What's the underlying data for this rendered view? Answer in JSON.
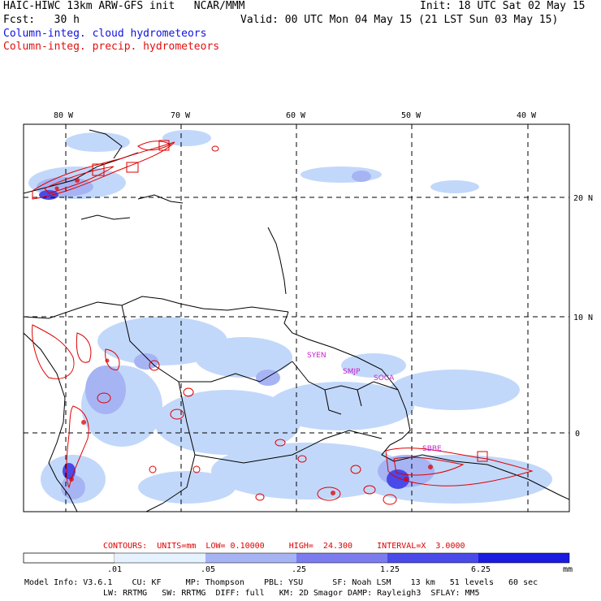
{
  "header": {
    "model_line": "HAIC-HIWC 13km ARW-GFS init   NCAR/MMM",
    "init_line": "Init: 18 UTC Sat 02 May 15",
    "fcst_line": "Fcst:   30 h",
    "valid_line": "Valid: 00 UTC Mon 04 May 15 (21 LST Sun 03 May 15)",
    "legend_cloud": "Column-integ. cloud hydrometeors",
    "legend_precip": "Column-integ. precip. hydrometeors"
  },
  "colors": {
    "cloud_text": "#1010e0",
    "precip_text": "#e01010",
    "precip_contour": "#e00000",
    "label_magenta": "#cc22cc",
    "shade_1": "#e6f2ff",
    "shade_2": "#c2d8fa",
    "shade_3": "#a6b4f4",
    "shade_4": "#7d7cef",
    "shade_5": "#4a4ae8",
    "shade_6": "#1a1ae0",
    "coast": "#000000",
    "grid": "#000000"
  },
  "map": {
    "lon_labels": [
      "80 W",
      "70 W",
      "60 W",
      "50 W",
      "40 W"
    ],
    "lat_labels": [
      "20 N",
      "10 N",
      "0"
    ],
    "place_labels": [
      "SYEN",
      "SMJP",
      "SOCA",
      "SBBE"
    ]
  },
  "contour_info": {
    "label": "CONTOURS:  UNITS=mm  LOW= 0.10000     HIGH=  24.300     INTERVAL=X  3.0000"
  },
  "colorbar": {
    "ticks": [
      ".01",
      ".05",
      ".25",
      "1.25",
      "6.25"
    ],
    "units": "mm"
  },
  "footer": {
    "line1": "Model Info: V3.6.1    CU: KF     MP: Thompson    PBL: YSU      SF: Noah LSM    13 km   51 levels   60 sec",
    "line2": "LW: RRTMG   SW: RRTMG  DIFF: full   KM: 2D Smagor DAMP: Rayleigh3  SFLAY: MM5"
  }
}
